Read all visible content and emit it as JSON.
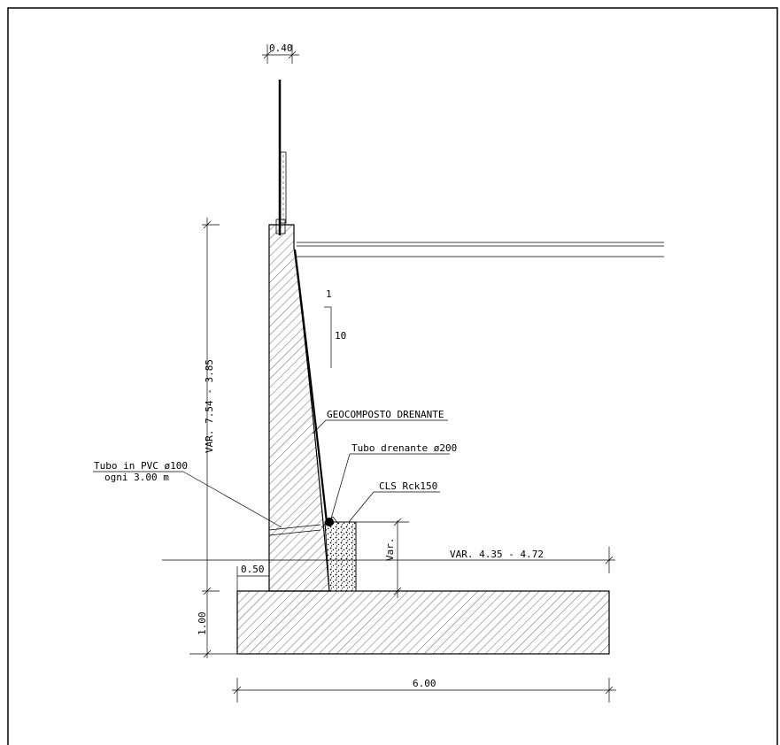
{
  "dimensions": {
    "post_width": "0.40",
    "height_range": "VAR. 7.54 - 3.85",
    "wall_width": "0.50",
    "footing_thickness": "1.00",
    "base_width": "6.00",
    "retained_range": "VAR. 4.35 - 4.72",
    "var_label": "Var."
  },
  "slope": {
    "rise": "1",
    "run": "10"
  },
  "labels": {
    "geocomposite": "GEOCOMPOSTO DRENANTE",
    "drain_pipe": "Tubo drenante ø200",
    "concrete": "CLS Rck150",
    "pvc_pipe_line1": "Tubo in PVC ø100",
    "pvc_pipe_line2": "ogni 3.00 m"
  }
}
